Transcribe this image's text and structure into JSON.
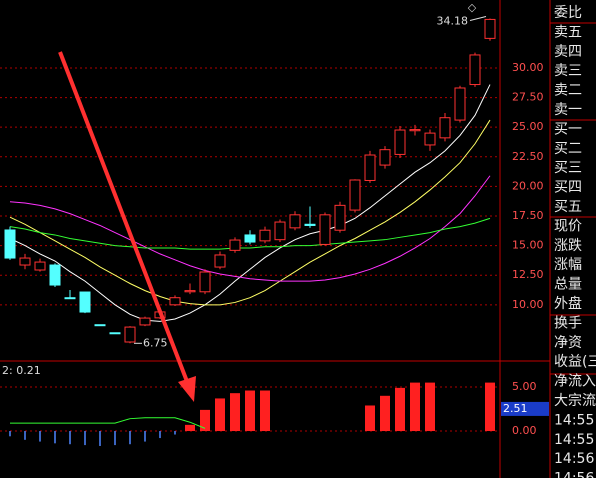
{
  "chart_data": [
    {
      "type": "candlestick",
      "open": [
        16.32,
        13.36,
        12.94,
        13.36,
        10.6,
        11.08,
        8.32,
        7.64,
        6.86,
        8.3,
        8.9,
        10.0,
        11.1,
        11.1,
        13.19,
        14.6,
        15.9,
        15.4,
        15.5,
        16.5,
        16.8,
        15.1,
        16.3,
        18.0,
        20.5,
        21.8,
        22.7,
        24.7,
        23.5,
        24.1,
        25.6,
        28.6,
        32.5
      ],
      "high": [
        16.6,
        14.3,
        13.9,
        13.5,
        11.25,
        11.1,
        8.32,
        7.64,
        8.2,
        9.0,
        9.6,
        10.8,
        11.8,
        13.0,
        14.5,
        15.7,
        16.3,
        16.6,
        17.2,
        17.9,
        18.3,
        17.8,
        18.7,
        20.6,
        23.0,
        23.4,
        25.1,
        25.2,
        24.8,
        26.2,
        28.5,
        31.3,
        34.18
      ],
      "low": [
        13.8,
        13.0,
        12.8,
        11.5,
        10.57,
        9.3,
        8.3,
        7.62,
        6.75,
        8.2,
        8.8,
        9.9,
        10.9,
        10.9,
        13.0,
        14.4,
        15.1,
        15.2,
        15.3,
        16.3,
        16.5,
        15.0,
        16.1,
        17.8,
        20.3,
        21.5,
        22.4,
        24.3,
        23.0,
        23.8,
        25.4,
        28.4,
        32.3
      ],
      "close": [
        13.95,
        13.95,
        13.61,
        11.67,
        10.58,
        9.39,
        8.3,
        7.62,
        8.12,
        8.88,
        9.4,
        10.6,
        11.2,
        12.77,
        14.21,
        15.47,
        15.3,
        16.3,
        16.99,
        17.6,
        16.7,
        17.6,
        18.4,
        20.54,
        22.65,
        23.1,
        24.76,
        24.8,
        24.5,
        25.8,
        28.31,
        31.1,
        34.1
      ],
      "up_color": "#ff3232",
      "down_color": "#54ffff",
      "lines": [
        {
          "color": "#ffffff",
          "values": [
            15.6,
            15.0,
            14.3,
            13.7,
            12.8,
            12.0,
            11.0,
            10.0,
            9.2,
            8.7,
            8.6,
            8.8,
            9.3,
            10.0,
            10.9,
            12.0,
            13.0,
            14.0,
            14.8,
            15.5,
            16.0,
            16.3,
            16.7,
            17.3,
            18.2,
            19.2,
            20.2,
            21.2,
            22.0,
            23.0,
            24.3,
            26.0,
            28.6
          ]
        },
        {
          "color": "#ffff66",
          "values": [
            17.4,
            16.8,
            16.1,
            15.4,
            14.7,
            14.0,
            13.2,
            12.5,
            11.8,
            11.2,
            10.7,
            10.3,
            10.1,
            10.0,
            10.0,
            10.2,
            10.6,
            11.2,
            12.0,
            12.8,
            13.6,
            14.3,
            15.0,
            15.6,
            16.3,
            17.0,
            17.8,
            18.7,
            19.7,
            20.8,
            22.0,
            23.6,
            25.6
          ]
        },
        {
          "color": "#ff33ff",
          "values": [
            18.7,
            18.6,
            18.4,
            18.1,
            17.7,
            17.2,
            16.7,
            16.1,
            15.5,
            14.9,
            14.3,
            13.8,
            13.3,
            12.9,
            12.6,
            12.4,
            12.2,
            12.1,
            12.0,
            12.0,
            12.0,
            12.1,
            12.3,
            12.6,
            13.0,
            13.5,
            14.1,
            14.8,
            15.6,
            16.6,
            17.7,
            19.2,
            20.9
          ]
        },
        {
          "color": "#33ff33",
          "values": [
            16.6,
            16.4,
            16.1,
            15.9,
            15.6,
            15.4,
            15.2,
            15.0,
            14.9,
            14.8,
            14.8,
            14.8,
            14.7,
            14.7,
            14.7,
            14.8,
            14.8,
            14.9,
            14.9,
            15.0,
            15.0,
            15.1,
            15.2,
            15.3,
            15.4,
            15.5,
            15.7,
            15.9,
            16.1,
            16.4,
            16.6,
            16.9,
            17.3
          ]
        }
      ],
      "ylim": [
        5.34,
        35.74
      ],
      "yticks": [
        {
          "value": 10,
          "label": "10.00"
        },
        {
          "value": 12.5,
          "label": "12.50"
        },
        {
          "value": 15,
          "label": "15.00"
        },
        {
          "value": 17.5,
          "label": "17.50"
        },
        {
          "value": 20,
          "label": "20.00"
        },
        {
          "value": 22.5,
          "label": "22.50"
        },
        {
          "value": 25,
          "label": "25.00"
        },
        {
          "value": 27.5,
          "label": "27.50"
        },
        {
          "value": 30,
          "label": "30.00"
        }
      ],
      "grid": true,
      "annotations": [
        {
          "value": 34.18,
          "label": "34.18",
          "index": 32
        },
        {
          "value": 6.75,
          "label": "6.75",
          "index": 8
        }
      ],
      "marker": "◇"
    },
    {
      "type": "bar",
      "title": "2: 0.21",
      "series": [
        {
          "kind": "bar",
          "color": "#ff2020",
          "values": [
            null,
            null,
            null,
            null,
            null,
            null,
            null,
            null,
            null,
            null,
            null,
            null,
            0.7,
            2.4,
            3.7,
            4.3,
            4.6,
            4.6,
            null,
            null,
            null,
            null,
            null,
            null,
            2.9,
            4.0,
            4.9,
            5.5,
            5.5,
            null,
            null,
            null,
            5.5
          ]
        },
        {
          "kind": "stick",
          "color": "#4f86ff",
          "values": [
            -0.6,
            -1.0,
            -1.2,
            -1.4,
            -1.5,
            -1.6,
            -1.7,
            -1.6,
            -1.5,
            -1.2,
            -0.8,
            -0.4,
            null,
            null,
            null,
            null,
            null,
            null,
            null,
            null,
            null,
            null,
            null,
            null,
            null,
            null,
            null,
            null,
            null,
            null,
            null,
            null,
            null
          ]
        },
        {
          "kind": "line",
          "color": "#33ff33",
          "values": [
            0.9,
            0.9,
            0.9,
            0.9,
            0.9,
            0.9,
            0.9,
            0.9,
            1.4,
            1.5,
            1.5,
            1.5,
            1.0,
            0.3,
            null,
            null,
            null,
            null,
            null,
            null,
            null,
            null,
            null,
            null,
            null,
            null,
            null,
            null,
            null,
            null,
            null,
            null,
            null
          ]
        }
      ],
      "ylim": [
        -1.93,
        7.84
      ],
      "yticks": [
        {
          "value": 0,
          "label": "0.00"
        },
        {
          "value": 5,
          "label": "5.00"
        }
      ],
      "grid": true,
      "current_value": 2.51
    }
  ],
  "side_panel": {
    "rows": [
      "委比",
      "卖五",
      "卖四",
      "卖三",
      "卖二",
      "卖一",
      "买一",
      "买二",
      "买三",
      "买四",
      "买五",
      "现价",
      "涨跌",
      "涨幅",
      "总量",
      "外盘",
      "换手",
      "净资",
      "收益(三",
      "净流入",
      "大宗流",
      "14:55",
      "14:55",
      "14:56",
      "14:56"
    ]
  }
}
